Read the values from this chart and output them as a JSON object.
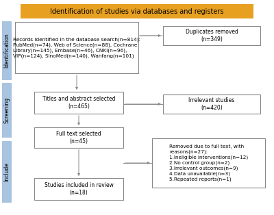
{
  "title": "Identification of studies via databases and registers",
  "title_bg": "#E8A020",
  "title_color": "#000000",
  "sidebar_color": "#A8C4E0",
  "box_left_texts": [
    "Records identified in the database search(n=814):\nPubMed(n=74), Web of Science(n=88), Cochrane\nLibrary(n=145), Embase(n=46), CNKI(n=96),\nVIP(n=124), SinoMed(n=140), Wanfang(n=101)",
    "Titles and abstract selected\n(n=465)",
    "Full text selected\n(n=45)",
    "Studies included in review\n(n=18)"
  ],
  "box_right_texts": [
    "Duplicates removed\n(n=349)",
    "Irrelevant studies\n(n=420)",
    "Removed due to full text, with\nreasons(n=27):\n1.Ineligible interventions(n=12)\n2.No control group(n=2)\n3.Irrelevant outcomes(n=9)\n4.Data unavailable(n=3)\n5.Repeated reports(n=1)"
  ],
  "arrow_color": "#888888",
  "box_border_color": "#888888",
  "bg_color": "#FFFFFF",
  "font_size": 5.5,
  "title_font_size": 7.0,
  "sidebar_font_size": 5.5
}
